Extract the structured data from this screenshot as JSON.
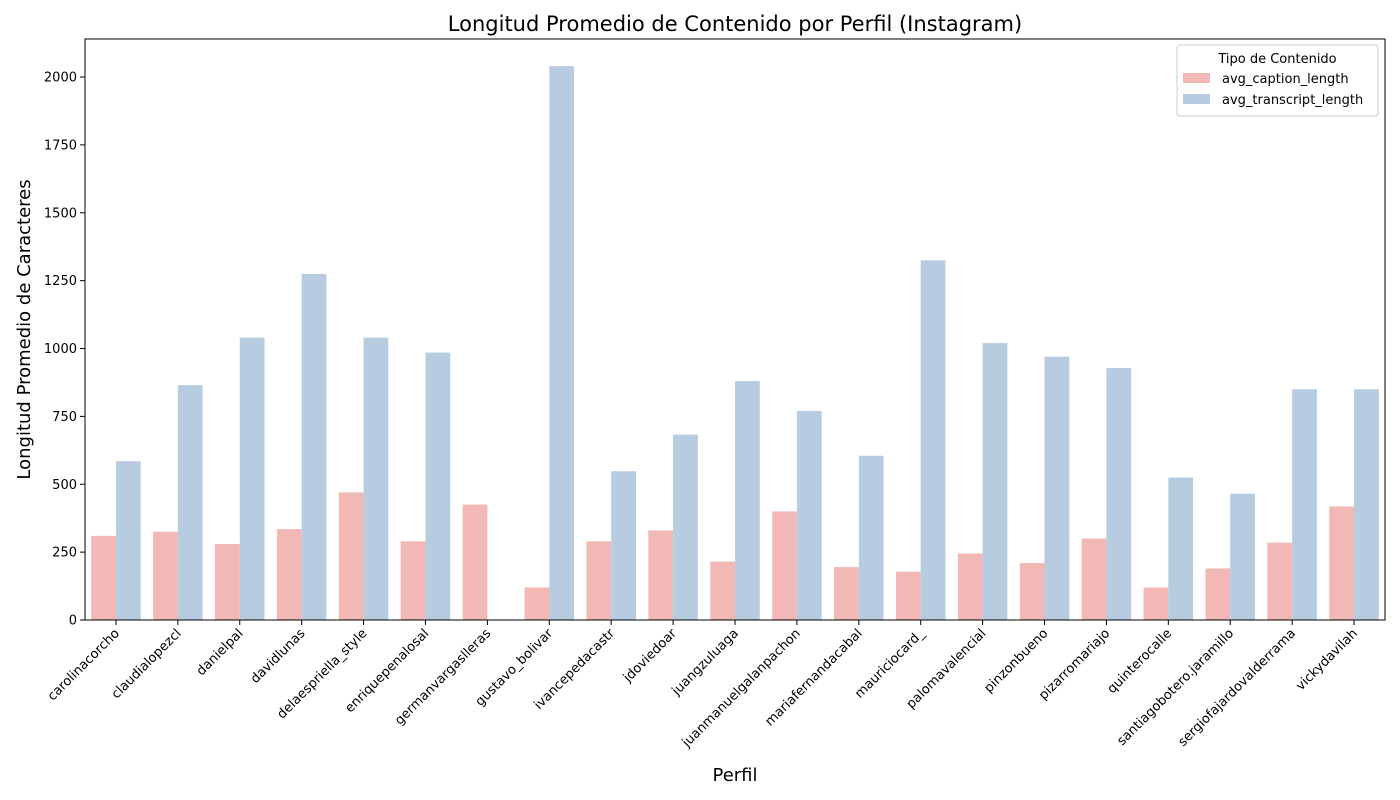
{
  "chart_data": {
    "type": "bar",
    "title": "Longitud Promedio de Contenido por Perfil (Instagram)",
    "xlabel": "Perfil",
    "ylabel": "Longitud Promedio de Caracteres",
    "ylim": [
      0,
      2140
    ],
    "yticks": [
      0,
      250,
      500,
      750,
      1000,
      1250,
      1500,
      1750,
      2000
    ],
    "grid": false,
    "legend": {
      "title": "Tipo de Contenido",
      "placement": "top-right"
    },
    "categories": [
      "carolinacorcho",
      "claudialopezcl",
      "danielpal",
      "davidlunas",
      "delaespriella_style",
      "enriquepenalosal",
      "germanvargaslleras",
      "gustavo_bolivar",
      "ivancepedacastr",
      "jdoviedoar",
      "juangzuluaga",
      "juanmanuelgalanpachon",
      "mariafernandacabal",
      "mauriciocard_",
      "palomavalencial",
      "pinzonbueno",
      "pizarromariajo",
      "quinterocalle",
      "santiagobotero.jaramillo",
      "sergiofajardovalderrama",
      "vickydavilah"
    ],
    "series": [
      {
        "name": "avg_caption_length",
        "color": "#f2b8b5",
        "values": [
          310,
          325,
          280,
          335,
          470,
          290,
          425,
          120,
          290,
          330,
          215,
          400,
          195,
          178,
          245,
          210,
          300,
          120,
          190,
          285,
          418
        ]
      },
      {
        "name": "avg_transcript_length",
        "color": "#b7cce0",
        "values": [
          585,
          865,
          1040,
          1275,
          1040,
          985,
          0,
          2040,
          548,
          683,
          880,
          770,
          605,
          1325,
          1020,
          970,
          928,
          525,
          465,
          850,
          850
        ]
      }
    ]
  }
}
